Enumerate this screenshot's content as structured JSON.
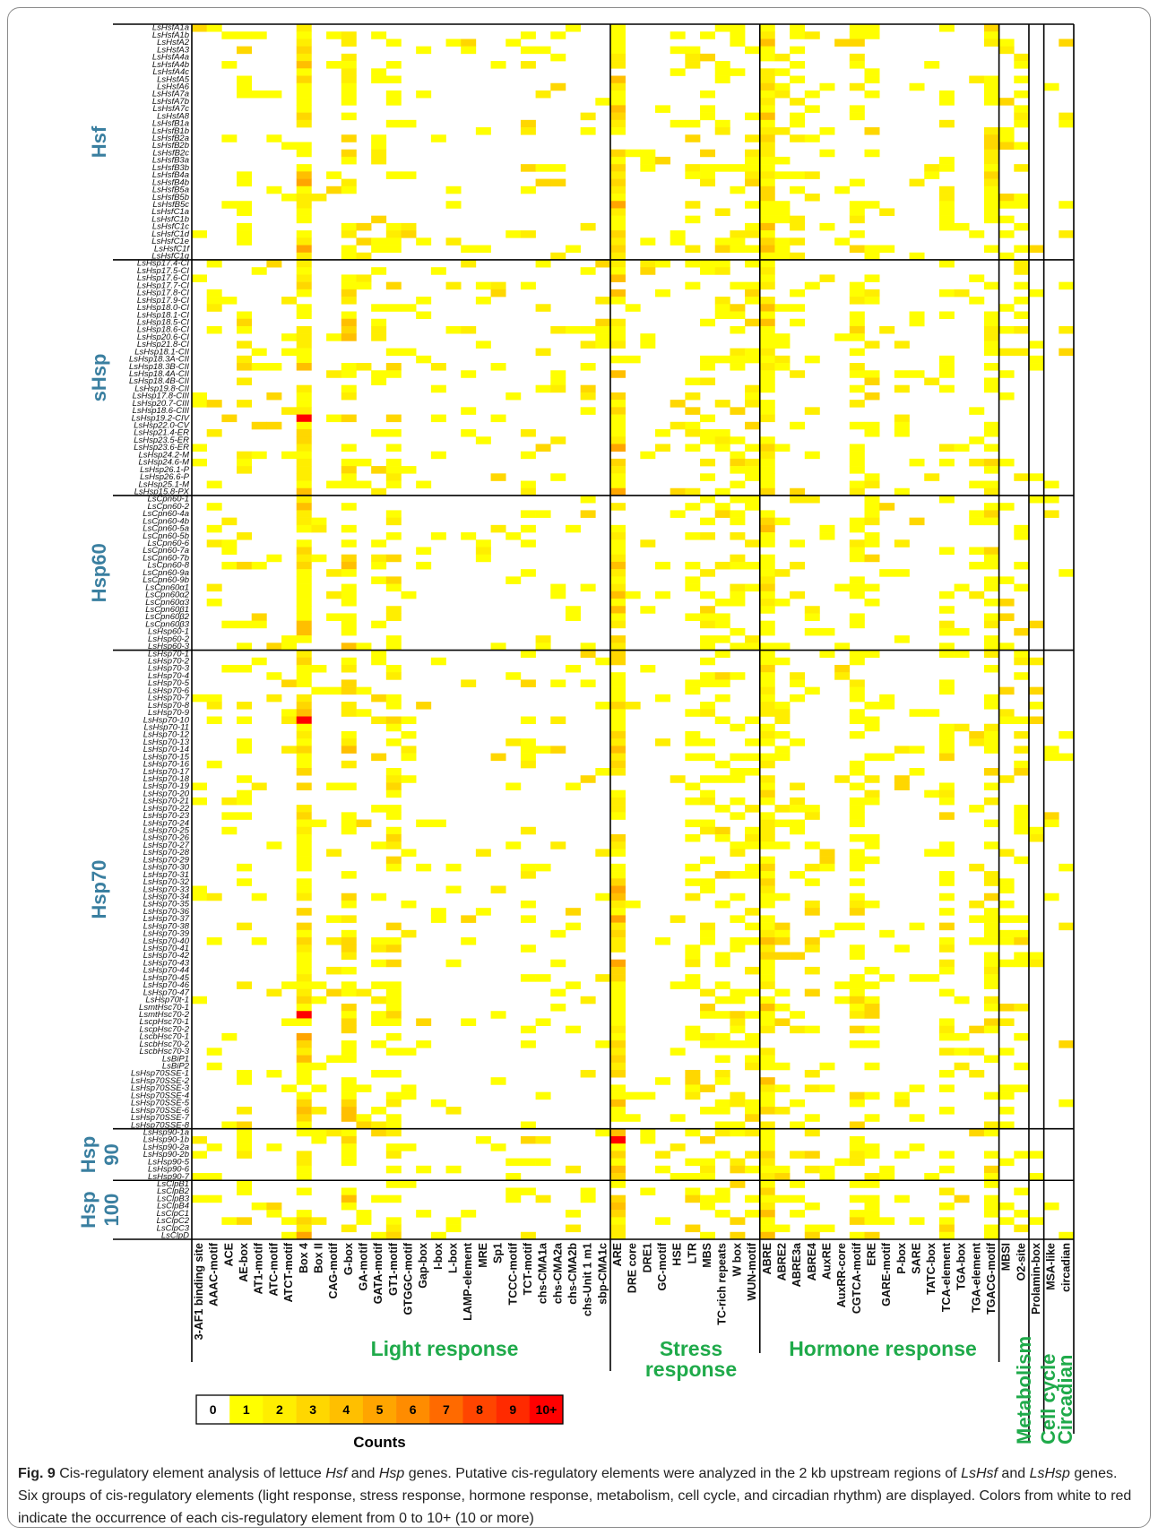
{
  "chart_data": {
    "type": "heatmap",
    "colorbar": {
      "title": "Counts",
      "labels": [
        "0",
        "1",
        "2",
        "3",
        "4",
        "5",
        "6",
        "7",
        "8",
        "9",
        "10+"
      ],
      "colors": [
        "#ffffff",
        "#ffff00",
        "#ffee00",
        "#ffd700",
        "#ffbf00",
        "#ffa500",
        "#ff8c00",
        "#ff6a00",
        "#ff4500",
        "#ff2a00",
        "#ff0000"
      ]
    },
    "row_groups": [
      {
        "name": "Hsf",
        "genes": [
          "LsHsfA1a",
          "LsHsfA1b",
          "LsHsfA2",
          "LsHsfA3",
          "LsHsfA4a",
          "LsHsfA4b",
          "LsHsfA4c",
          "LsHsfA5",
          "LsHsfA6",
          "LsHsfA7a",
          "LsHsfA7b",
          "LsHsfA7c",
          "LsHsfA8",
          "LsHsfB1a",
          "LsHsfB1b",
          "LsHsfB2a",
          "LsHsfB2b",
          "LsHsfB2c",
          "LsHsfB3a",
          "LsHsfB3b",
          "LsHsfB4a",
          "LsHsfB4b",
          "LsHsfB5a",
          "LsHsfB5b",
          "LsHsfB5c",
          "LsHsfC1a",
          "LsHsfC1b",
          "LsHsfC1c",
          "LsHsfC1d",
          "LsHsfC1e",
          "LsHsfC1f",
          "LsHsfC1g"
        ]
      },
      {
        "name": "sHsp",
        "genes": [
          "LsHsp17.4-CI",
          "LsHsp17.5-CI",
          "LsHsp17.6-CI",
          "LsHsp17.7-CI",
          "LsHsp17.8-CI",
          "LsHsp17.9-CI",
          "LsHsp18.0-CI",
          "LsHsp18.1-CI",
          "LsHsp18.5-CI",
          "LsHsp18.6-CI",
          "LsHsp20.6-CI",
          "LsHsp21.8-CI",
          "LsHsp18.1-CII",
          "LsHsp18.3A-CII",
          "LsHsp18.3B-CII",
          "LsHsp18.4A-CII",
          "LsHsp18.4B-CII",
          "LsHsp19.8-CII",
          "LsHsp17.8-CIII",
          "LsHsp20.7-CIII",
          "LsHsp18.6-CIII",
          "LsHsp19.2-CIV",
          "LsHsp22.0-CV",
          "LsHsp21.4-ER",
          "LsHsp23.5-ER",
          "LsHsp23.6-ER",
          "LsHsp24.2-M",
          "LsHsp24.6-M",
          "LsHsp26.1-P",
          "LsHsp26.6-P",
          "LsHsp25.1-M",
          "LsHsp15.8-PX"
        ]
      },
      {
        "name": "Hsp60",
        "genes": [
          "LsCpn60-1",
          "LsCpn60-2",
          "LsCpn60-4a",
          "LsCpn60-4b",
          "LsCpn60-5a",
          "LsCpn60-5b",
          "LsCpn60-6",
          "LsCpn60-7a",
          "LsCpn60-7b",
          "LsCpn60-8",
          "LsCpn60-9a",
          "LsCpn60-9b",
          "LsCpn60α1",
          "LsCpn60α2",
          "LsCpn60α3",
          "LsCpn60β1",
          "LsCpn60β2",
          "LsCpn60β3",
          "LsHsp60-1",
          "LsHsp60-2",
          "LsHsp60-3"
        ]
      },
      {
        "name": "Hsp70",
        "genes": [
          "LsHsp70-1",
          "LsHsp70-2",
          "LsHsp70-3",
          "LsHsp70-4",
          "LsHsp70-5",
          "LsHsp70-6",
          "LsHsp70-7",
          "LsHsp70-8",
          "LsHsp70-9",
          "LsHsp70-10",
          "LsHsp70-11",
          "LsHsp70-12",
          "LsHsp70-13",
          "LsHsp70-14",
          "LsHsp70-15",
          "LsHsp70-16",
          "LsHsp70-17",
          "LsHsp70-18",
          "LsHsp70-19",
          "LsHsp70-20",
          "LsHsp70-21",
          "LsHsp70-22",
          "LsHsp70-23",
          "LsHsp70-24",
          "LsHsp70-25",
          "LsHsp70-26",
          "LsHsp70-27",
          "LsHsp70-28",
          "LsHsp70-29",
          "LsHsp70-30",
          "LsHsp70-31",
          "LsHsp70-32",
          "LsHsp70-33",
          "LsHsp70-34",
          "LsHsp70-35",
          "LsHsp70-36",
          "LsHsp70-37",
          "LsHsp70-38",
          "LsHsp70-39",
          "LsHsp70-40",
          "LsHsp70-41",
          "LsHsp70-42",
          "LsHsp70-43",
          "LsHsp70-44",
          "LsHsp70-45",
          "LsHsp70-46",
          "LsHsp70-47",
          "LsHsp70t-1",
          "LsmtHsc70-1",
          "LsmtHsc70-2",
          "LscpHsc70-1",
          "LscpHsc70-2",
          "LscbHsc70-1",
          "LscbHsc70-2",
          "LscbHsc70-3",
          "LsBiP1",
          "LsBiP2",
          "LsHsp70SSE-1",
          "LsHsp70SSE-2",
          "LsHsp70SSE-3",
          "LsHsp70SSE-4",
          "LsHsp70SSE-5",
          "LsHsp70SSE-6",
          "LsHsp70SSE-7",
          "LsHsp70SSE-8"
        ]
      },
      {
        "name": "Hsp 90",
        "genes": [
          "LsHsp90-1a",
          "LsHsp90-1b",
          "LsHsp90-2a",
          "LsHsp90-2b",
          "LsHsp90-5",
          "LsHsp90-6",
          "LsHsp90-7"
        ]
      },
      {
        "name": "Hsp 100",
        "genes": [
          "LsClpB1",
          "LsClpB2",
          "LsClpB3",
          "LsClpB4",
          "LsClpC1",
          "LsClpC2",
          "LsClpC3",
          "LsClpD"
        ]
      }
    ],
    "column_groups": [
      {
        "name": "Light response",
        "elements": [
          "3-AF1 binding site",
          "AAAC-motif",
          "ACE",
          "AE-box",
          "AT1-motif",
          "ATC-motif",
          "ATCT-motif",
          "Box 4",
          "Box II",
          "CAG-motif",
          "G-box",
          "GA-motif",
          "GATA-motif",
          "GT1-motif",
          "GTGGC-motif",
          "Gap-box",
          "I-box",
          "L-box",
          "LAMP-element",
          "MRE",
          "Sp1",
          "TCCC-motif",
          "TCT-motif",
          "chs-CMA1a",
          "chs-CMA2a",
          "chs-CMA2b",
          "chs-Unit 1 m1",
          "sbp-CMA1c"
        ]
      },
      {
        "name": "Stress response",
        "elements": [
          "ARE",
          "DRE core",
          "DRE1",
          "GC-motif",
          "HSE",
          "LTR",
          "MBS",
          "TC-rich repeats",
          "W box",
          "WUN-motif"
        ]
      },
      {
        "name": "Hormone response",
        "elements": [
          "ABRE",
          "ABRE2",
          "ABRE3a",
          "ABRE4",
          "AuxRE",
          "AuxRR-core",
          "CGTCA-motif",
          "ERE",
          "GARE-motif",
          "P-box",
          "SARE",
          "TATC-box",
          "TCA-element",
          "TGA-box",
          "TGA-element",
          "TGACG-motif"
        ]
      },
      {
        "name": "Metabolism",
        "elements": [
          "MBSI",
          "O2-site"
        ]
      },
      {
        "name": "Cell cycle",
        "elements": [
          "Prolamin-box"
        ]
      },
      {
        "name": "Circadian",
        "elements": [
          "MSA-like",
          "circadian"
        ]
      }
    ]
  },
  "caption": {
    "label": "Fig. 9",
    "t1": " Cis-regulatory element analysis of lettuce ",
    "i1": "Hsf",
    "t2": " and ",
    "i2": "Hsp",
    "t3": " genes. Putative cis-regulatory elements were analyzed in the 2 kb upstream regions of ",
    "i3": "LsHsf",
    "t4": " and ",
    "i4": "LsHsp",
    "t5": " genes. Six groups of cis-regulatory elements (light response, stress response, hormone response, metabolism, cell cycle, and circadian rhythm) are displayed. Colors from white to red indicate the occurrence of each cis-regulatory element from 0 to 10+ (10 or more)"
  },
  "colors": {
    "row_group_label": "#3a7fa0",
    "column_group_label": "#1faa4a"
  }
}
